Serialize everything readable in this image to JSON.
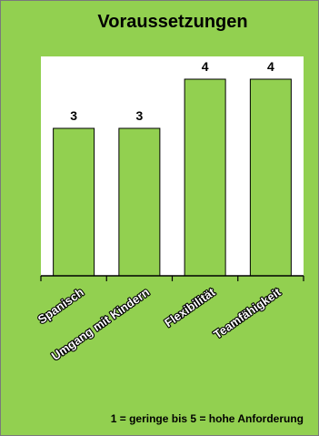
{
  "colors": {
    "background": "#92d050",
    "plot_area": "#ffffff",
    "bar_fill": "#92d050",
    "bar_stroke": "#000000",
    "axis": "#000000",
    "frame": "#7a7a7a"
  },
  "chart_data": {
    "type": "bar",
    "title": "Voraussetzungen",
    "categories": [
      "Spanisch",
      "Umgang mit Kindern",
      "Flexibilität",
      "Teamfähigkeit"
    ],
    "values": [
      3,
      3,
      4,
      4
    ],
    "data_labels": [
      "3",
      "3",
      "4",
      "4"
    ],
    "xlabel": "",
    "ylabel": "",
    "ylim": [
      0,
      5
    ],
    "grid": false,
    "legend": "none",
    "annotation": "1 = geringe bis 5 = hohe Anforderung"
  }
}
